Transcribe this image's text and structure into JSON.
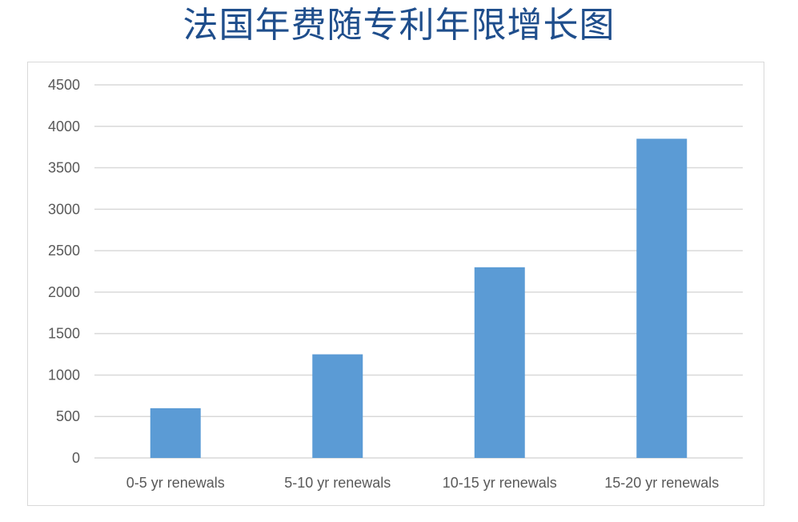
{
  "title": "法国年费随专利年限增长图",
  "chart_data": {
    "type": "bar",
    "title": "法国年费随专利年限增长图",
    "categories": [
      "0-5 yr renewals",
      "5-10 yr renewals",
      "10-15 yr renewals",
      "15-20 yr renewals"
    ],
    "values": [
      600,
      1250,
      2300,
      3850
    ],
    "ylim": [
      0,
      4500
    ],
    "yticks": [
      0,
      500,
      1000,
      1500,
      2000,
      2500,
      3000,
      3500,
      4000,
      4500
    ],
    "grid": true,
    "legend": "none",
    "bar_color": "#5b9bd5",
    "grid_color": "#d9d9d9"
  }
}
